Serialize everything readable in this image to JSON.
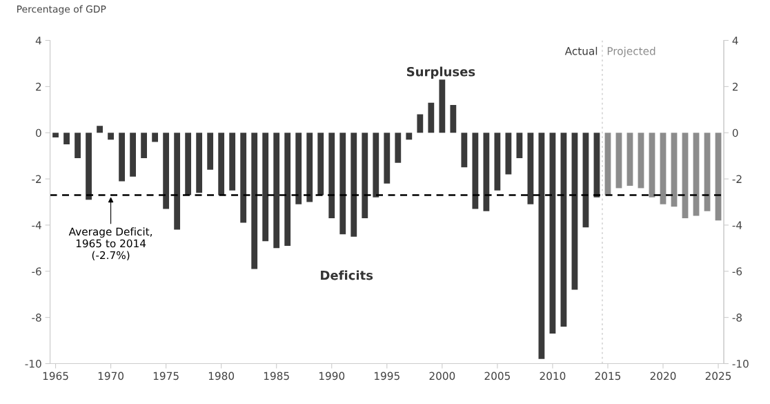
{
  "chart_data": {
    "type": "bar",
    "ylabel": "Percentage of GDP",
    "series": [
      {
        "name": "Actual",
        "color": "#3a3a3a",
        "x": [
          1965,
          1966,
          1967,
          1968,
          1969,
          1970,
          1971,
          1972,
          1973,
          1974,
          1975,
          1976,
          1977,
          1978,
          1979,
          1980,
          1981,
          1982,
          1983,
          1984,
          1985,
          1986,
          1987,
          1988,
          1989,
          1990,
          1991,
          1992,
          1993,
          1994,
          1995,
          1996,
          1997,
          1998,
          1999,
          2000,
          2001,
          2002,
          2003,
          2004,
          2005,
          2006,
          2007,
          2008,
          2009,
          2010,
          2011,
          2012,
          2013,
          2014
        ],
        "values": [
          -0.2,
          -0.5,
          -1.1,
          -2.9,
          0.3,
          -0.3,
          -2.1,
          -1.9,
          -1.1,
          -0.4,
          -3.3,
          -4.2,
          -2.7,
          -2.6,
          -1.6,
          -2.7,
          -2.5,
          -3.9,
          -5.9,
          -4.7,
          -5.0,
          -4.9,
          -3.1,
          -3.0,
          -2.7,
          -3.7,
          -4.4,
          -4.5,
          -3.7,
          -2.8,
          -2.2,
          -1.3,
          -0.3,
          0.8,
          1.3,
          2.3,
          1.2,
          -1.5,
          -3.3,
          -3.4,
          -2.5,
          -1.8,
          -1.1,
          -3.1,
          -9.8,
          -8.7,
          -8.4,
          -6.8,
          -4.1,
          -2.8
        ]
      },
      {
        "name": "Projected",
        "color": "#8c8c8c",
        "x": [
          2015,
          2016,
          2017,
          2018,
          2019,
          2020,
          2021,
          2022,
          2023,
          2024,
          2025
        ],
        "values": [
          -2.7,
          -2.4,
          -2.3,
          -2.4,
          -2.8,
          -3.1,
          -3.2,
          -3.7,
          -3.6,
          -3.4,
          -3.8
        ]
      }
    ],
    "xlim": [
      1964.5,
      2025.5
    ],
    "xticks": [
      1965,
      1970,
      1975,
      1980,
      1985,
      1990,
      1995,
      2000,
      2005,
      2010,
      2015,
      2020,
      2025
    ],
    "ylim": [
      -10,
      4
    ],
    "yticks": [
      -10,
      -8,
      -6,
      -4,
      -2,
      0,
      2,
      4
    ],
    "y2lim": [
      -10,
      4
    ],
    "y2ticks": [
      -10,
      -8,
      -6,
      -4,
      -2,
      0,
      2,
      4
    ],
    "ref_lines": [
      {
        "axis": "y",
        "value": -2.7,
        "label": "Average Deficit,\n1965 to 2014\n(-2.7%)",
        "color": "#000000",
        "line_style": "dashed"
      },
      {
        "axis": "x",
        "value": 2014.5,
        "label": null,
        "color": "#cccccc",
        "line_style": "dotted"
      }
    ],
    "annotations": [
      "Surpluses",
      "Deficits"
    ],
    "grid": false,
    "legend": false
  }
}
